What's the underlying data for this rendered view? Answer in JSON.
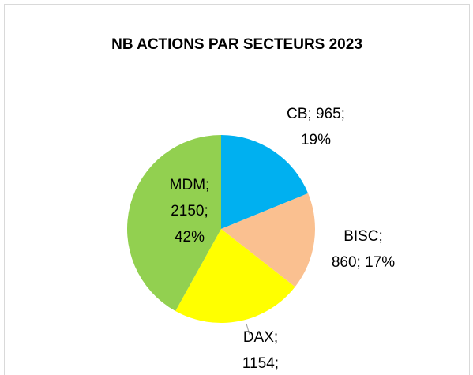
{
  "chart_data": {
    "type": "pie",
    "title": "NB ACTIONS PAR SECTEURS 2023",
    "categories": [
      "CB",
      "BISC",
      "DAX",
      "MDM"
    ],
    "values": [
      965,
      860,
      1154,
      2150
    ],
    "colors": [
      "#00b0f0",
      "#fac090",
      "#ffff00",
      "#92d050"
    ],
    "value_labels": [
      [
        "CB; 965;",
        "19%"
      ],
      [
        "BISC;",
        "860; 17%"
      ],
      [
        "DAX;",
        "1154;"
      ],
      [
        "MDM;",
        "2150;",
        "42%"
      ]
    ]
  }
}
